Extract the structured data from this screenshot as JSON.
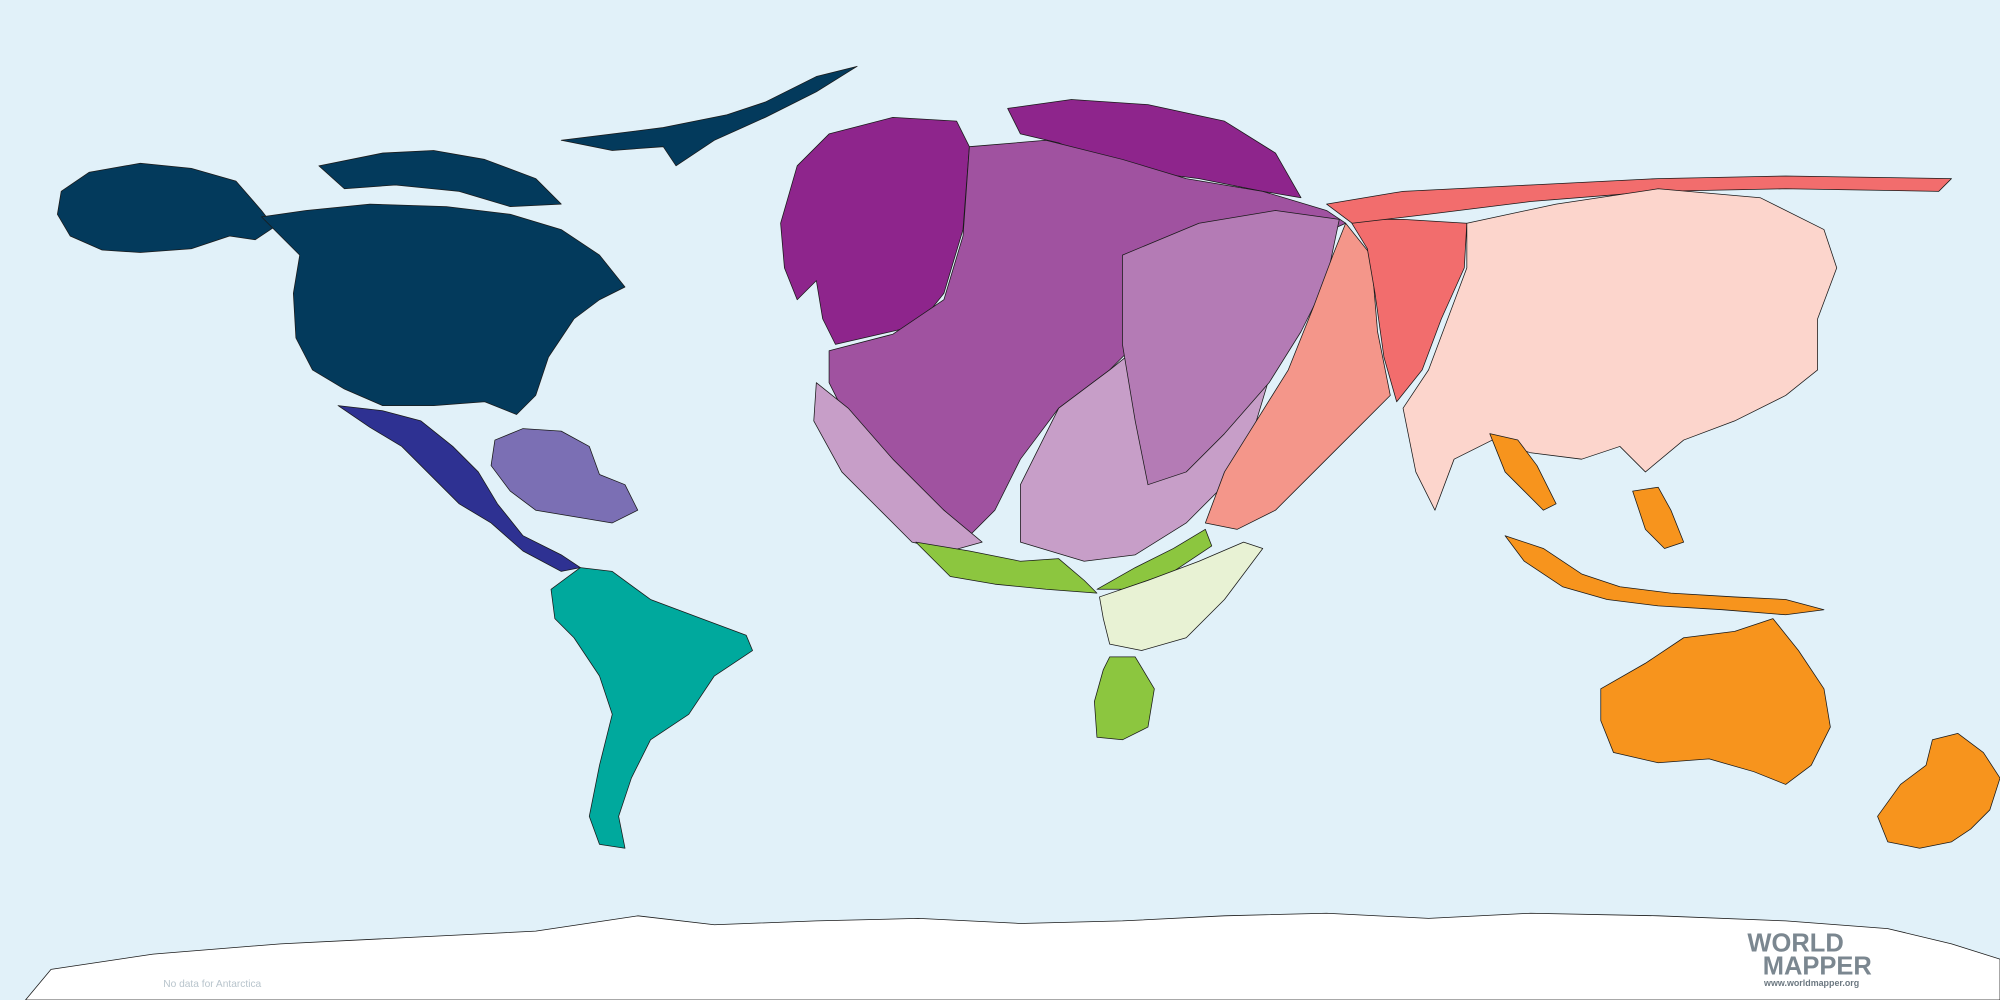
{
  "map": {
    "note": "No data for Antarctica",
    "logo": {
      "line1": "WORLD",
      "line2": "MAPPER",
      "url": "www.worldmapper.org"
    }
  }
}
